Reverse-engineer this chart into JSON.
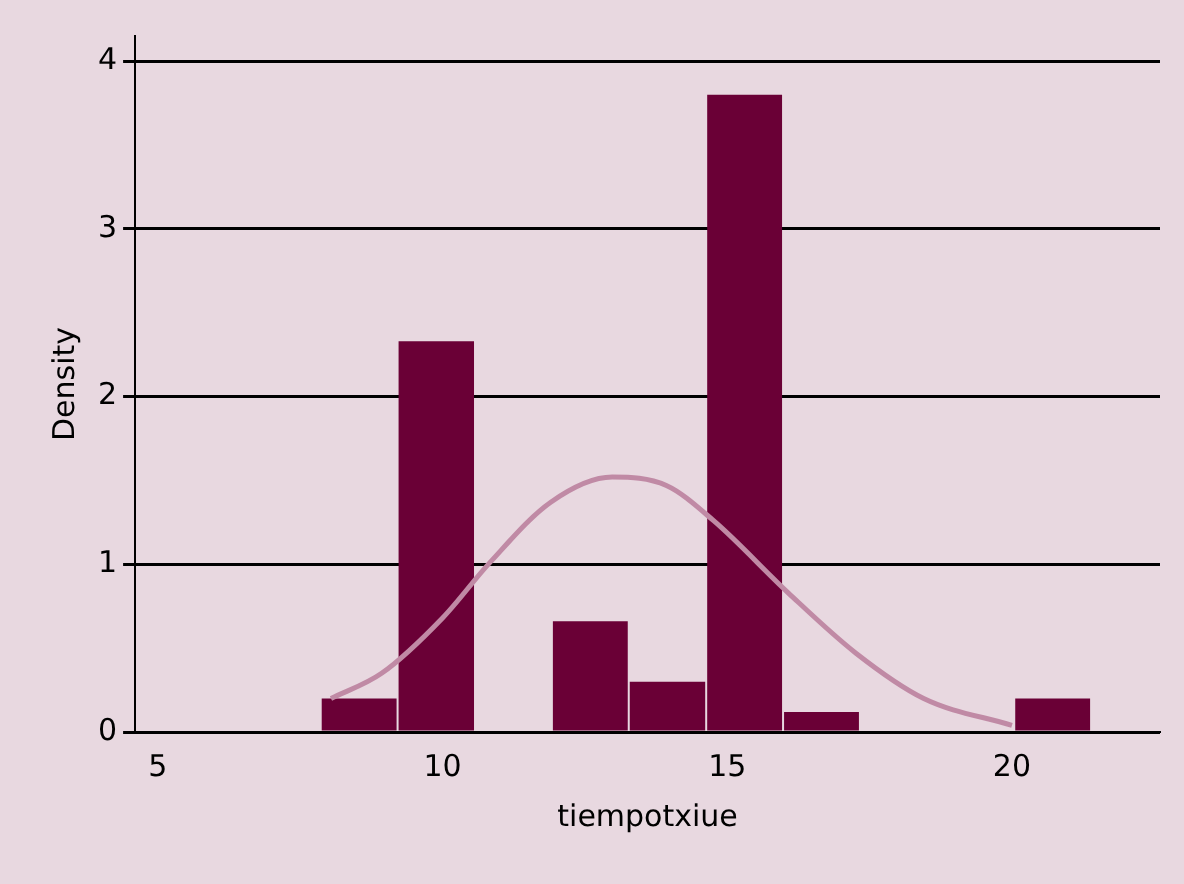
{
  "chart_data": {
    "type": "histogram",
    "xlabel": "tiempotxiue",
    "ylabel": "Density",
    "bins": [
      7.86,
      9.21,
      10.57,
      11.92,
      13.27,
      14.63,
      15.98,
      17.33,
      20.04,
      21.39
    ],
    "values": [
      0.2,
      2.33,
      0,
      0.66,
      0.3,
      3.8,
      0.12,
      0,
      0.2
    ],
    "color": "#6a0036",
    "series": [
      {
        "type": "line",
        "color": "#c08aa5",
        "x": [
          8.04,
          8.93,
          10,
          10.83,
          11.9,
          12.98,
          13.93,
          14.76,
          16.07,
          17.26,
          18.45,
          20
        ],
        "values": [
          0.2,
          0.35,
          0.68,
          1.01,
          1.37,
          1.52,
          1.47,
          1.26,
          0.83,
          0.47,
          0.2,
          0.04
        ]
      }
    ],
    "xlim": [
      4.6,
      22.6
    ],
    "xticks": [
      5,
      10,
      15,
      20
    ],
    "ylim": [
      0,
      4.15
    ],
    "yticks": [
      0,
      1,
      2,
      3,
      4
    ],
    "grid": "y",
    "legend": false,
    "marker": "none",
    "line_style": "solid"
  }
}
